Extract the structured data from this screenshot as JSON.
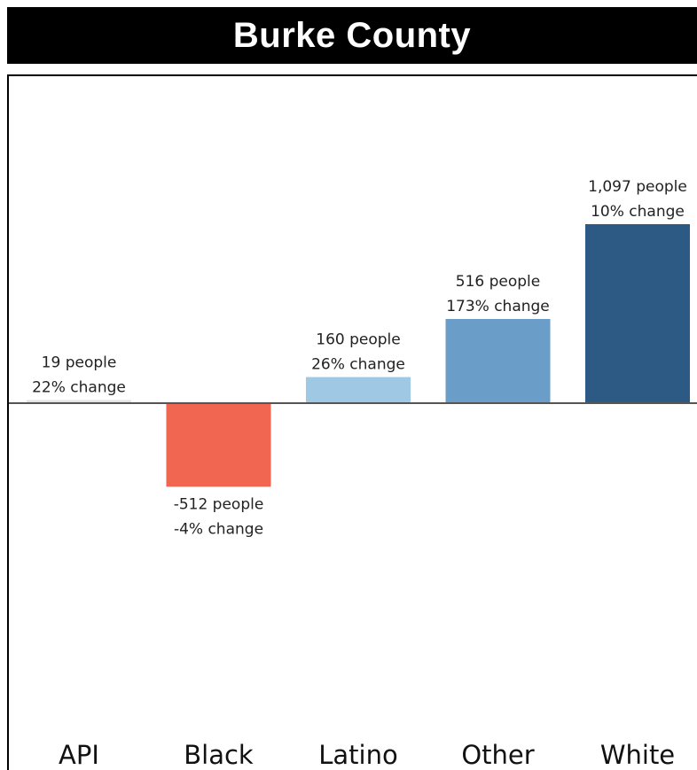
{
  "chart_data": {
    "type": "bar",
    "title": "Burke County",
    "categories": [
      "API",
      "Black",
      "Latino",
      "Other",
      "White"
    ],
    "values": [
      19,
      -512,
      160,
      516,
      1097
    ],
    "percent_change": [
      22,
      -4,
      26,
      173,
      10
    ],
    "labels_people": [
      "19 people",
      "-512 people",
      "160 people",
      "516 people",
      "1,097 people"
    ],
    "labels_change": [
      "22% change",
      "-4% change",
      "26% change",
      "173% change",
      "10% change"
    ],
    "colors": [
      "#e3e3e3",
      "#f06651",
      "#9fc8e4",
      "#6a9ec8",
      "#2d5a84"
    ],
    "xlabel": "",
    "ylabel": "",
    "grid": false,
    "legend": "none"
  }
}
